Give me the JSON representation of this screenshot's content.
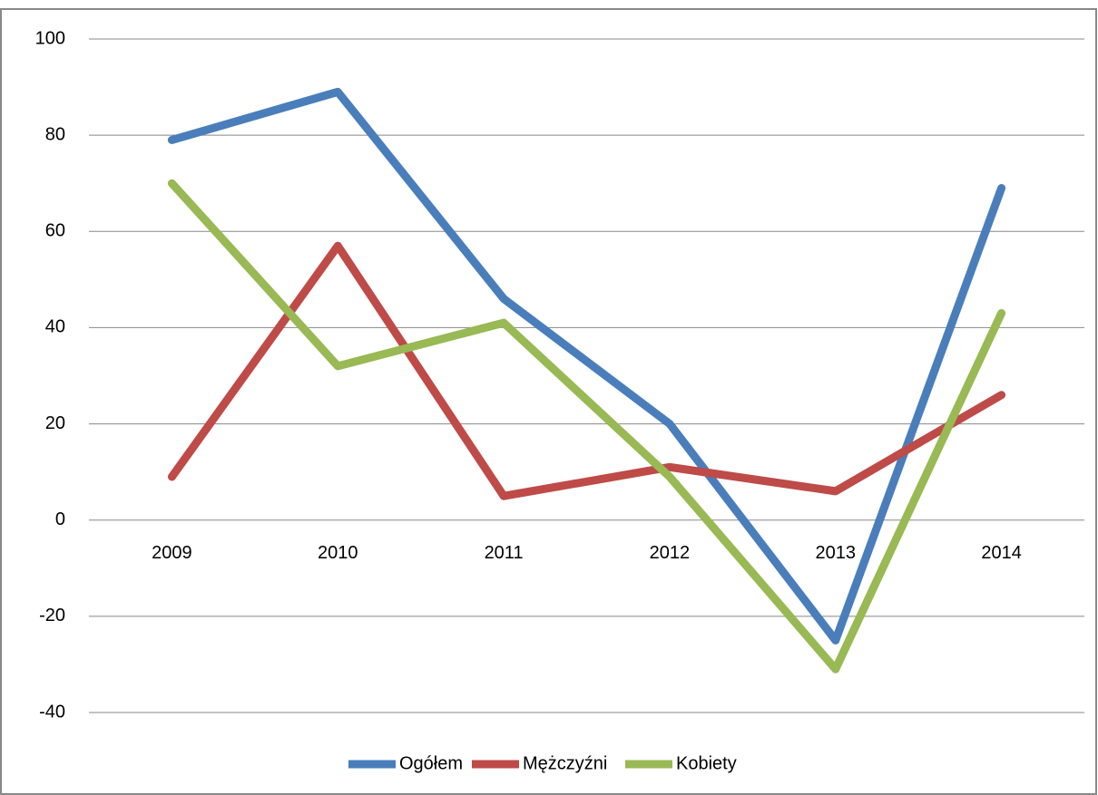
{
  "chart_data": {
    "type": "line",
    "categories": [
      "2009",
      "2010",
      "2011",
      "2012",
      "2013",
      "2014"
    ],
    "series": [
      {
        "name": "Ogółem",
        "color": "#4a7ebb",
        "values": [
          79,
          89,
          46,
          20,
          -25,
          69
        ]
      },
      {
        "name": "Mężczyźni",
        "color": "#be4b48",
        "values": [
          9,
          57,
          5,
          11,
          6,
          26
        ]
      },
      {
        "name": "Kobiety",
        "color": "#98b954",
        "values": [
          70,
          32,
          41,
          9,
          -31,
          43
        ]
      }
    ],
    "ylim": [
      -40,
      100
    ],
    "yticks": [
      -40,
      -20,
      0,
      20,
      40,
      60,
      80,
      100
    ],
    "grid": true,
    "legend": "bottom"
  }
}
